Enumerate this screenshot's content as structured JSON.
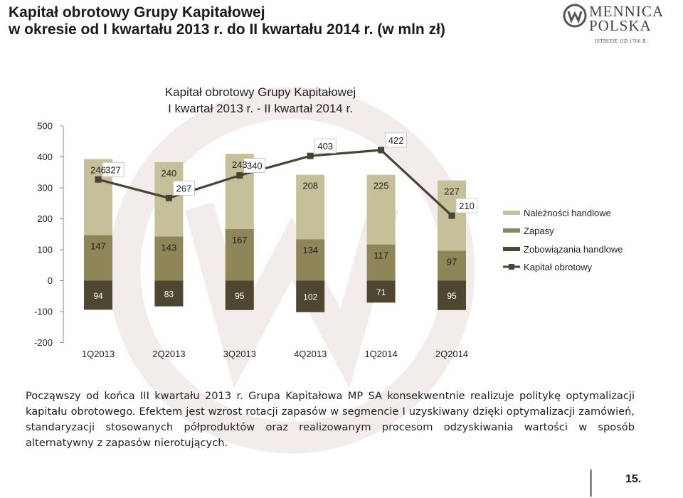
{
  "slide": {
    "title_line1": "Kapitał obrotowy Grupy Kapitałowej",
    "title_line2": "w okresie od I kwartału 2013 r. do II kwartału 2014 r. (w mln zł)",
    "page_number": "15."
  },
  "logo": {
    "line1": "MENNICA",
    "line2": "POLSKA",
    "since": "ISTNIEJE OD 1766 R."
  },
  "body_text": "Począwszy od końca III kwartału 2013 r. Grupa Kapitałowa MP SA konsekwentnie realizuje politykę optymalizacji kapitału obrotowego. Efektem jest wzrost rotacji zapasów w segmencie I uzyskiwany dzięki optymalizacji zamówień, standaryzacji stosowanych półproduktów oraz realizowanym procesom odzyskiwania wartości w sposób alternatywny z zapasów nierotujących.",
  "colors": {
    "receivables": "#c6c09a",
    "inventory": "#8e8658",
    "payables": "#4e4630",
    "working_capital": "#4a4232"
  },
  "chart_data": {
    "type": "bar",
    "stacked": true,
    "title_line1": "Kapitał obrotowy Grupy Kapitałowej",
    "title_line2": "I kwartał 2013 r. - II kwartał 2014 r.",
    "categories": [
      "1Q2013",
      "2Q2013",
      "3Q2013",
      "4Q2013",
      "1Q2014",
      "2Q2014"
    ],
    "ylim": [
      -200,
      500
    ],
    "yticks": [
      -200,
      -100,
      0,
      100,
      200,
      300,
      400,
      500
    ],
    "grid": false,
    "legend_position": "right",
    "series": [
      {
        "name": "Należności handlowe",
        "kind": "bar",
        "values": [
          246,
          240,
          243,
          208,
          225,
          227
        ]
      },
      {
        "name": "Zapasy",
        "kind": "bar",
        "values": [
          147,
          143,
          167,
          134,
          117,
          97
        ]
      },
      {
        "name": "Zobowiązania handlowe",
        "kind": "bar",
        "values": [
          94,
          83,
          95,
          102,
          71,
          95
        ]
      },
      {
        "name": "Kapitał obrotowy",
        "kind": "line",
        "values": [
          327,
          267,
          340,
          403,
          422,
          210
        ]
      }
    ]
  }
}
